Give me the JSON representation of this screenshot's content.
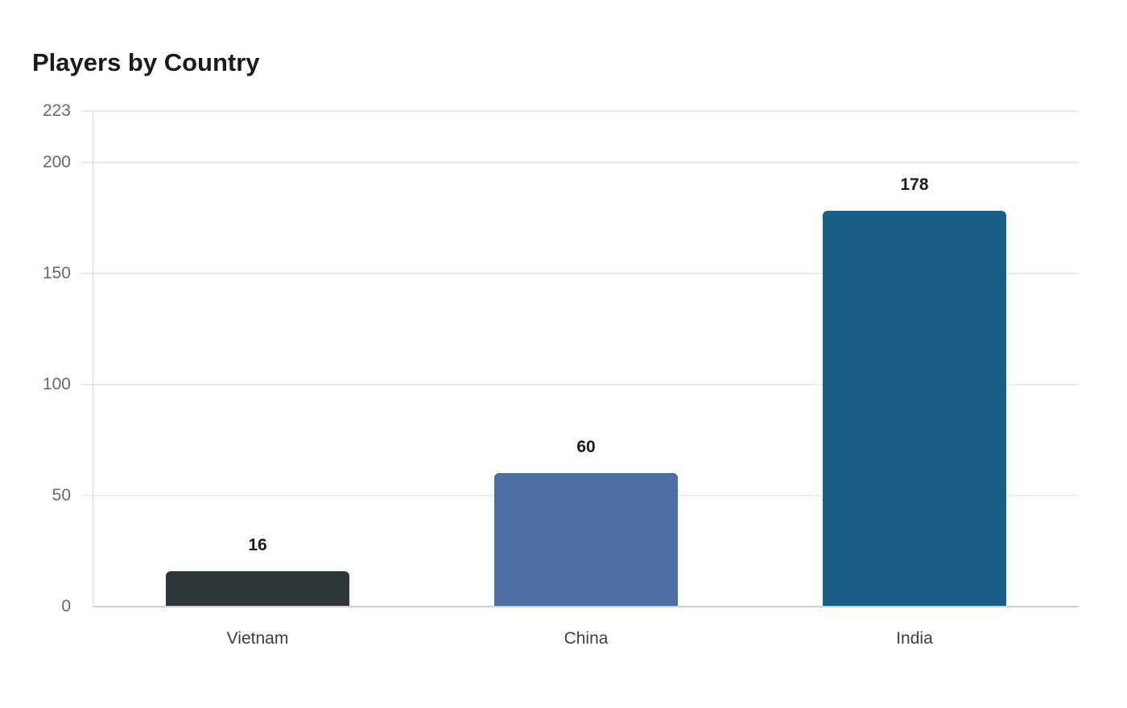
{
  "chart_data": {
    "type": "bar",
    "title": "Players by Country",
    "xlabel": "",
    "ylabel": "",
    "categories": [
      "Vietnam",
      "China",
      "India"
    ],
    "values": [
      16,
      60,
      178
    ],
    "colors": [
      "#2e3538",
      "#4a6ea1",
      "#186088"
    ],
    "yticks": [
      0,
      50,
      100,
      150,
      200,
      223
    ],
    "ylim": [
      0,
      223
    ],
    "grid": true,
    "legend": "none"
  },
  "labels": {
    "title": "Players by Country",
    "yticks": [
      "0",
      "50",
      "100",
      "150",
      "200",
      "223"
    ],
    "categories": [
      "Vietnam",
      "China",
      "India"
    ],
    "values": [
      "16",
      "60",
      "178"
    ]
  }
}
